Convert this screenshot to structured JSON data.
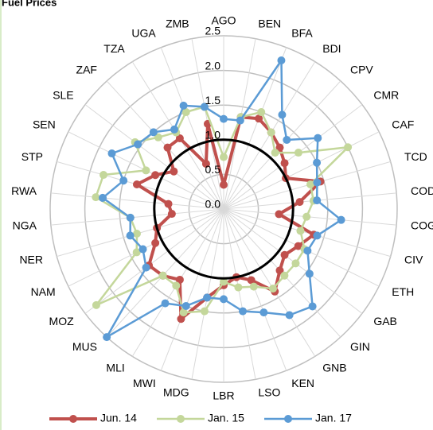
{
  "chart_data": {
    "type": "radar",
    "title": "Fuel Prices",
    "categories": [
      "AGO",
      "BEN",
      "BFA",
      "BDI",
      "CPV",
      "CMR",
      "CAF",
      "TCD",
      "COD",
      "COG",
      "CIV",
      "ETH",
      "GAB",
      "GIN",
      "GNB",
      "KEN",
      "LSO",
      "LBR",
      "MDG",
      "MWI",
      "MLI",
      "MUS",
      "MOZ",
      "NAM",
      "NER",
      "NGA",
      "RWA",
      "STP",
      "SEN",
      "SLE",
      "ZAF",
      "TZA",
      "UGA",
      "ZMB"
    ],
    "series": [
      {
        "name": "Jun. 14",
        "color": "#c0504d",
        "values": [
          0.35,
          1.35,
          1.4,
          1.3,
          1.2,
          1.1,
          1.0,
          1.45,
          1.1,
          0.8,
          1.35,
          1.2,
          1.1,
          1.2,
          1.4,
          1.1,
          1.0,
          1.1,
          1.3,
          1.7,
          1.2,
          1.3,
          1.35,
          1.1,
          1.0,
          0.75,
          0.8,
          1.3,
          1.1,
          0.9,
          1.2,
          1.2,
          0.7,
          1.25
        ]
      },
      {
        "name": "Jan. 15",
        "color": "#c4d79b",
        "values": [
          0.75,
          1.35,
          1.5,
          1.3,
          1.1,
          1.35,
          2.0,
          1.3,
          1.3,
          1.2,
          1.15,
          1.3,
          1.3,
          1.3,
          1.35,
          1.2,
          1.15,
          1.05,
          1.5,
          1.6,
          1.3,
          1.3,
          2.3,
          1.4,
          1.3,
          1.35,
          1.85,
          1.8,
          1.25,
          1.6,
          1.4,
          1.3,
          1.5,
          1.5
        ]
      },
      {
        "name": "Jan. 17",
        "color": "#5b9bd5",
        "values": [
          1.3,
          1.3,
          2.3,
          1.6,
          1.35,
          1.7,
          1.5,
          1.4,
          1.35,
          1.7,
          1.4,
          1.35,
          1.55,
          1.9,
          1.8,
          1.6,
          1.5,
          1.3,
          1.3,
          1.5,
          1.6,
          2.5,
          1.4,
          1.3,
          1.4,
          1.35,
          1.75,
          1.5,
          1.8,
          1.55,
          1.5,
          1.35,
          1.6,
          1.5
        ]
      }
    ],
    "ylim": [
      0,
      2.5
    ],
    "yticks": [
      {
        "value": 0,
        "label": "0.0"
      },
      {
        "value": 0.5,
        "label": "0.5"
      },
      {
        "value": 1,
        "label": "1.0"
      },
      {
        "value": 1.5,
        "label": "1.5"
      },
      {
        "value": 2,
        "label": "2.0"
      },
      {
        "value": 2.5,
        "label": "2.5"
      }
    ],
    "reference_value": 1,
    "grid": true,
    "legend": "bottom"
  }
}
